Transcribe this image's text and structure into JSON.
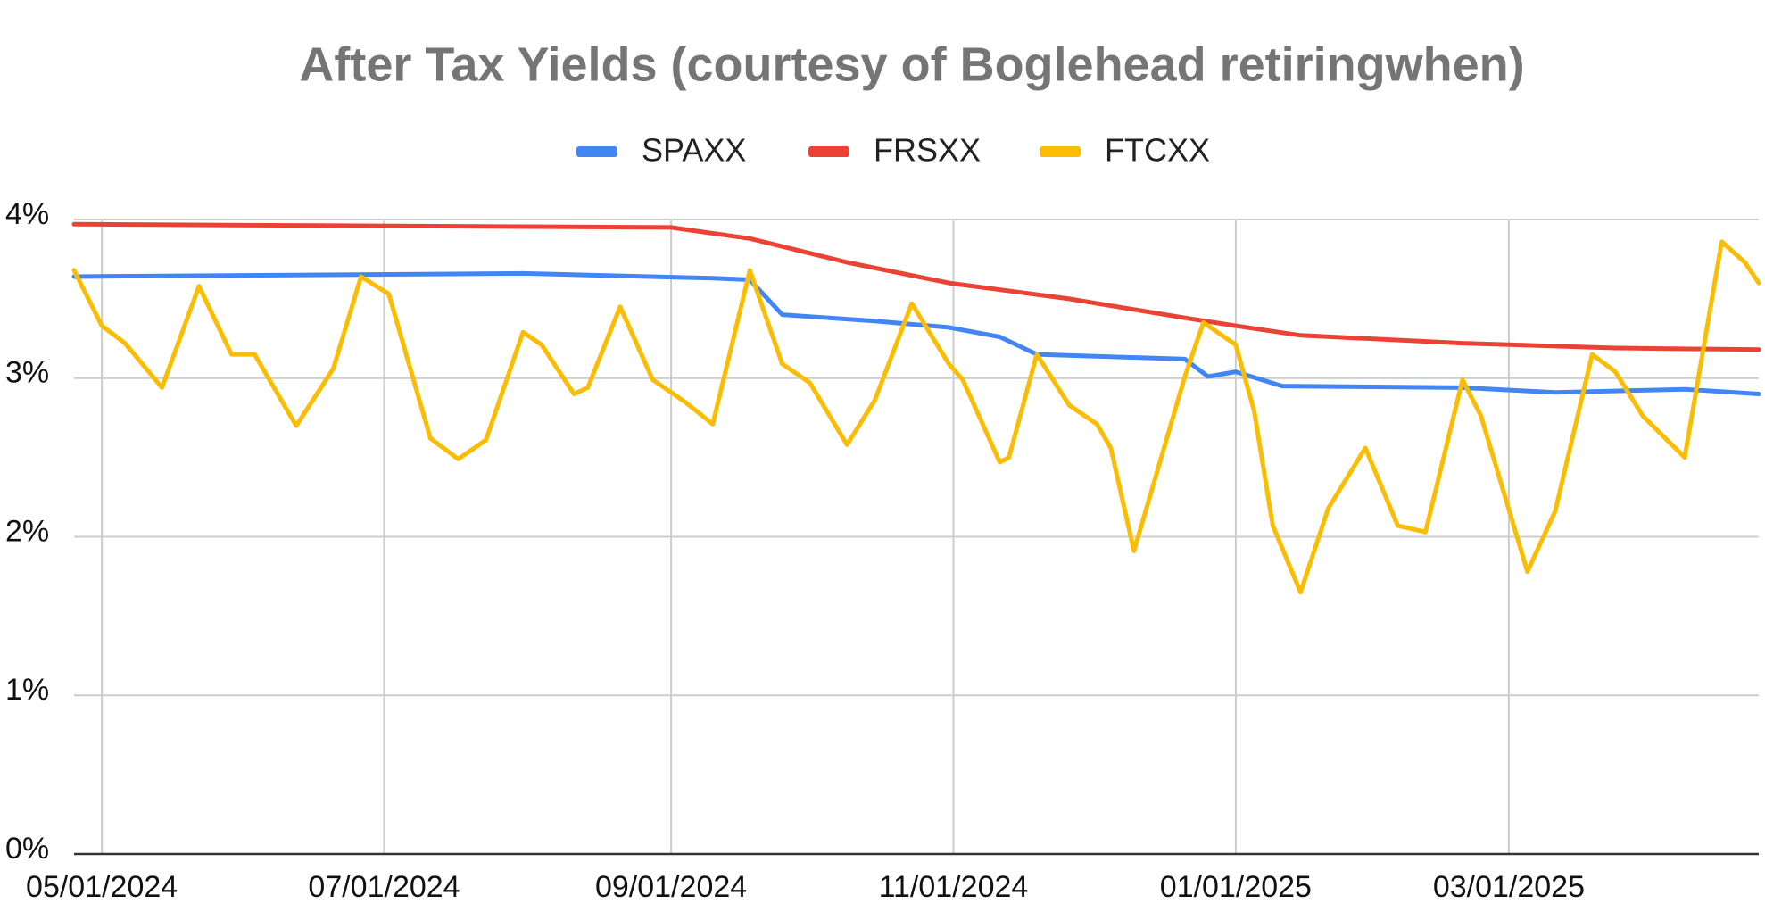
{
  "chart_data": {
    "type": "line",
    "title": "After Tax Yields (courtesy of Boglehead retiringwhen)",
    "legend": "top",
    "grid": true,
    "xlim": [
      "04/25/2024",
      "04/24/2025"
    ],
    "xticks": [
      "05/01/2024",
      "07/01/2024",
      "09/01/2024",
      "11/01/2024",
      "01/01/2025",
      "03/01/2025"
    ],
    "ylim": [
      0,
      4
    ],
    "yticks": [
      {
        "value": 0,
        "label": "0%"
      },
      {
        "value": 1,
        "label": "1%"
      },
      {
        "value": 2,
        "label": "2%"
      },
      {
        "value": 3,
        "label": "3%"
      },
      {
        "value": 4,
        "label": "4%"
      }
    ],
    "series": [
      {
        "name": "SPAXX",
        "color": "#4285f4",
        "x": [
          "04/25/2024",
          "07/31/2024",
          "09/10/2024",
          "09/18/2024",
          "09/25/2024",
          "10/15/2024",
          "10/31/2024",
          "11/11/2024",
          "11/19/2024",
          "12/21/2024",
          "12/26/2024",
          "01/01/2025",
          "01/11/2025",
          "02/19/2025",
          "03/11/2025",
          "04/08/2025",
          "04/24/2025"
        ],
        "values": [
          3.64,
          3.66,
          3.63,
          3.62,
          3.4,
          3.36,
          3.32,
          3.26,
          3.15,
          3.12,
          3.01,
          3.04,
          2.95,
          2.94,
          2.91,
          2.93,
          2.9
        ]
      },
      {
        "name": "FRSXX",
        "color": "#ea4335",
        "x": [
          "04/25/2024",
          "09/01/2024",
          "09/18/2024",
          "10/09/2024",
          "10/31/2024",
          "11/26/2024",
          "12/21/2024",
          "01/01/2025",
          "01/15/2025",
          "02/19/2025",
          "03/24/2025",
          "04/24/2025"
        ],
        "values": [
          3.97,
          3.95,
          3.88,
          3.73,
          3.6,
          3.5,
          3.38,
          3.33,
          3.27,
          3.22,
          3.19,
          3.18
        ]
      },
      {
        "name": "FTCXX",
        "color": "#fbbc04",
        "x": [
          "04/25/2024",
          "05/01/2024",
          "05/06/2024",
          "05/14/2024",
          "05/22/2024",
          "05/29/2024",
          "06/03/2024",
          "06/12/2024",
          "06/20/2024",
          "06/26/2024",
          "07/02/2024",
          "07/11/2024",
          "07/17/2024",
          "07/23/2024",
          "07/31/2024",
          "08/04/2024",
          "08/11/2024",
          "08/14/2024",
          "08/21/2024",
          "08/28/2024",
          "09/04/2024",
          "09/10/2024",
          "09/18/2024",
          "09/25/2024",
          "10/01/2024",
          "10/09/2024",
          "10/15/2024",
          "10/23/2024",
          "10/31/2024",
          "11/03/2024",
          "11/11/2024",
          "11/13/2024",
          "11/19/2024",
          "11/26/2024",
          "12/02/2024",
          "12/05/2024",
          "12/10/2024",
          "12/17/2024",
          "12/21/2024",
          "12/25/2024",
          "01/01/2025",
          "01/05/2025",
          "01/09/2025",
          "01/15/2025",
          "01/21/2025",
          "01/29/2025",
          "02/05/2025",
          "02/11/2025",
          "02/19/2025",
          "02/23/2025",
          "03/05/2025",
          "03/11/2025",
          "03/19/2025",
          "03/24/2025",
          "03/30/2025",
          "04/08/2025",
          "04/16/2025",
          "04/21/2025",
          "04/24/2025"
        ],
        "values": [
          3.68,
          3.33,
          3.22,
          2.94,
          3.58,
          3.15,
          3.15,
          2.7,
          3.06,
          3.64,
          3.53,
          2.62,
          2.49,
          2.61,
          3.29,
          3.21,
          2.9,
          2.94,
          3.45,
          2.99,
          2.85,
          2.71,
          3.68,
          3.09,
          2.97,
          2.58,
          2.86,
          3.47,
          3.09,
          2.99,
          2.47,
          2.5,
          3.15,
          2.83,
          2.71,
          2.56,
          1.91,
          2.61,
          3.01,
          3.35,
          3.21,
          2.79,
          2.07,
          1.65,
          2.18,
          2.56,
          2.07,
          2.03,
          2.99,
          2.76,
          1.78,
          2.16,
          3.15,
          3.04,
          2.76,
          2.5,
          3.86,
          3.73,
          3.6
        ]
      }
    ]
  }
}
